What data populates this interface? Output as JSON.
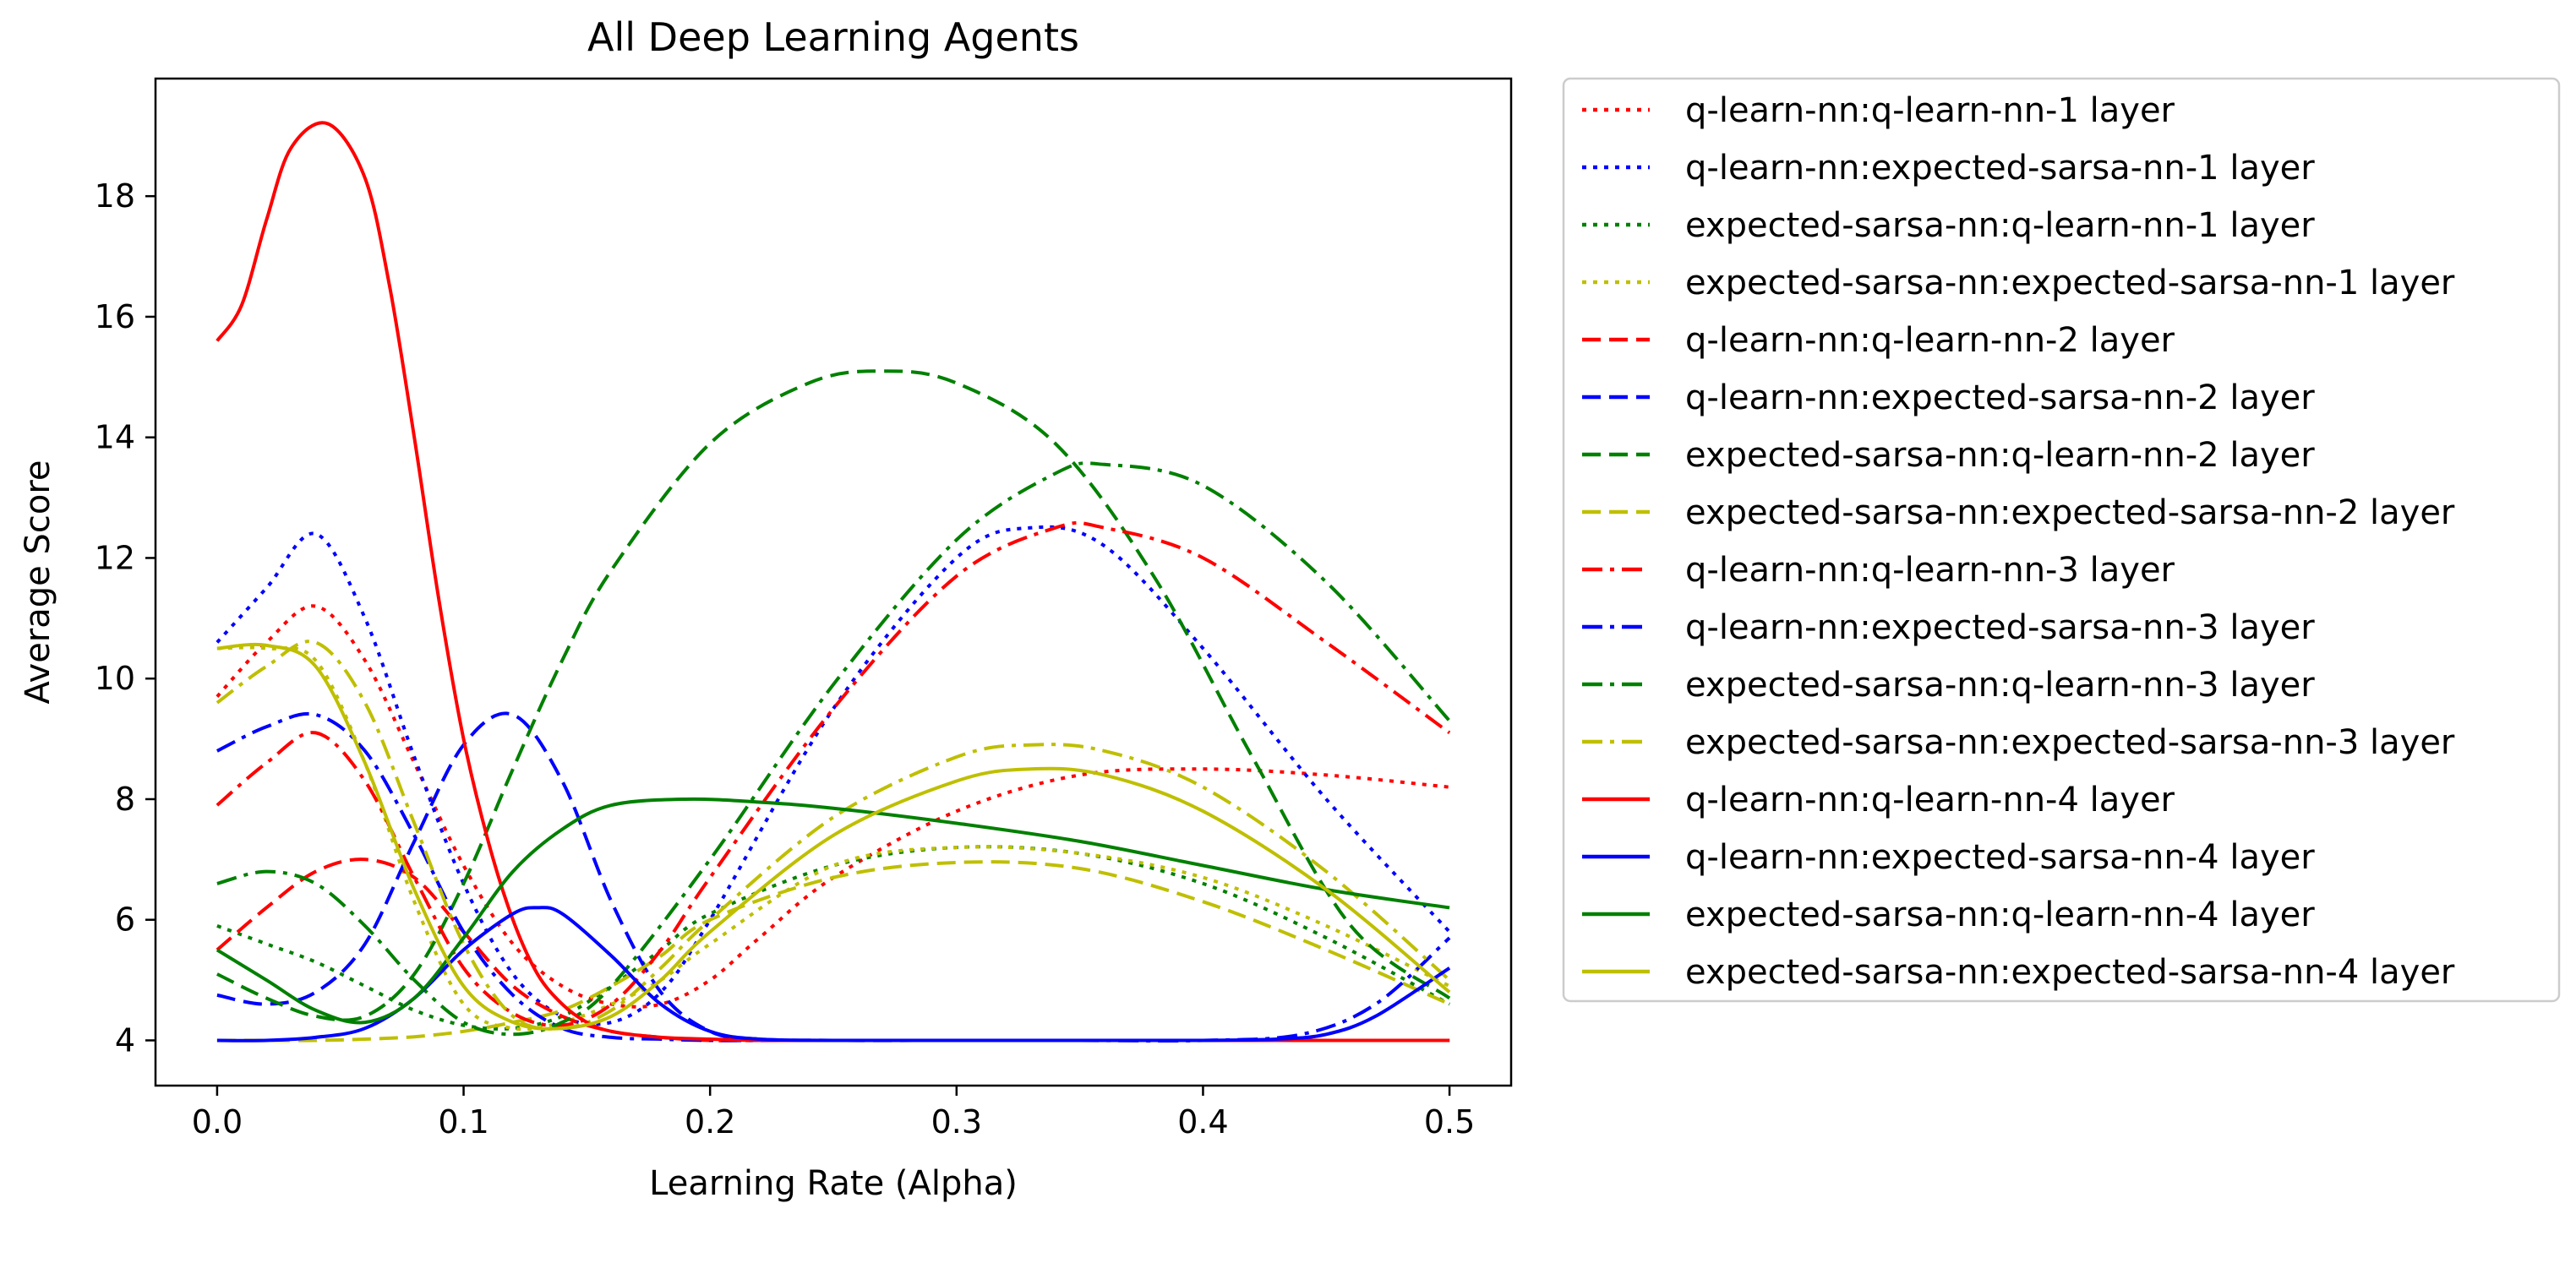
{
  "chart_data": {
    "type": "line",
    "title": "All Deep Learning Agents",
    "xlabel": "Learning Rate (Alpha)",
    "ylabel": "Average Score",
    "xlim": [
      -0.025,
      0.525
    ],
    "ylim": [
      3.25,
      19.95
    ],
    "xticks": [
      0.0,
      0.1,
      0.2,
      0.3,
      0.4,
      0.5
    ],
    "xtick_labels": [
      "0.0",
      "0.1",
      "0.2",
      "0.3",
      "0.4",
      "0.5"
    ],
    "yticks": [
      4,
      6,
      8,
      10,
      12,
      14,
      16,
      18
    ],
    "ytick_labels": [
      "4",
      "6",
      "8",
      "10",
      "12",
      "14",
      "16",
      "18"
    ],
    "grid": false,
    "legend_position": "outside-right",
    "series": [
      {
        "name": "q-learn-nn:q-learn-nn-1 layer",
        "color": "#ff0000",
        "style": "dotted",
        "x": [
          0.0,
          0.02,
          0.04,
          0.06,
          0.08,
          0.1,
          0.12,
          0.14,
          0.16,
          0.18,
          0.2,
          0.22,
          0.25,
          0.3,
          0.35,
          0.4,
          0.45,
          0.5
        ],
        "y": [
          9.7,
          10.6,
          11.2,
          10.3,
          8.6,
          6.9,
          5.6,
          4.9,
          4.6,
          4.6,
          5.0,
          5.7,
          6.7,
          7.8,
          8.4,
          8.5,
          8.4,
          8.2
        ]
      },
      {
        "name": "q-learn-nn:expected-sarsa-nn-1 layer",
        "color": "#0000ff",
        "style": "dotted",
        "x": [
          0.0,
          0.02,
          0.04,
          0.06,
          0.08,
          0.1,
          0.12,
          0.14,
          0.16,
          0.18,
          0.2,
          0.25,
          0.3,
          0.33,
          0.36,
          0.4,
          0.45,
          0.5
        ],
        "y": [
          10.6,
          11.5,
          12.4,
          11.0,
          8.7,
          6.6,
          5.1,
          4.4,
          4.3,
          4.8,
          6.0,
          9.5,
          12.0,
          12.5,
          12.2,
          10.5,
          8.0,
          5.8
        ]
      },
      {
        "name": "expected-sarsa-nn:q-learn-nn-1 layer",
        "color": "#008000",
        "style": "dotted",
        "x": [
          0.0,
          0.02,
          0.04,
          0.06,
          0.08,
          0.1,
          0.12,
          0.14,
          0.16,
          0.18,
          0.2,
          0.25,
          0.3,
          0.35,
          0.4,
          0.45,
          0.5
        ],
        "y": [
          5.9,
          5.6,
          5.3,
          4.9,
          4.5,
          4.25,
          4.2,
          4.4,
          4.9,
          5.5,
          6.1,
          6.9,
          7.2,
          7.1,
          6.6,
          5.7,
          4.6
        ]
      },
      {
        "name": "expected-sarsa-nn:expected-sarsa-nn-1 layer",
        "color": "#bfbf00",
        "style": "dotted",
        "x": [
          0.0,
          0.02,
          0.04,
          0.06,
          0.08,
          0.1,
          0.12,
          0.14,
          0.16,
          0.18,
          0.2,
          0.25,
          0.3,
          0.35,
          0.4,
          0.45,
          0.5
        ],
        "y": [
          10.5,
          10.5,
          10.3,
          8.6,
          6.3,
          4.6,
          4.2,
          4.3,
          4.6,
          5.0,
          5.6,
          6.9,
          7.2,
          7.1,
          6.7,
          5.9,
          4.9
        ]
      },
      {
        "name": "q-learn-nn:q-learn-nn-2 layer",
        "color": "#ff0000",
        "style": "dashed",
        "x": [
          0.0,
          0.02,
          0.04,
          0.06,
          0.08,
          0.1,
          0.12,
          0.14,
          0.16,
          0.18,
          0.2,
          0.22,
          0.25,
          0.3,
          0.35,
          0.4,
          0.45,
          0.5
        ],
        "y": [
          5.5,
          6.2,
          6.8,
          7.0,
          6.7,
          5.8,
          4.9,
          4.4,
          4.15,
          4.05,
          4.0,
          4.0,
          4.0,
          4.0,
          4.0,
          4.0,
          4.0,
          4.0
        ]
      },
      {
        "name": "q-learn-nn:expected-sarsa-nn-2 layer",
        "color": "#0000ff",
        "style": "dashed",
        "x": [
          0.0,
          0.02,
          0.04,
          0.06,
          0.08,
          0.1,
          0.12,
          0.14,
          0.16,
          0.18,
          0.2,
          0.22,
          0.25,
          0.3,
          0.35,
          0.4,
          0.45,
          0.5
        ],
        "y": [
          4.75,
          4.6,
          4.8,
          5.6,
          7.3,
          8.9,
          9.4,
          8.3,
          6.3,
          4.8,
          4.15,
          4.02,
          4.0,
          4.0,
          4.0,
          4.0,
          4.0,
          4.0
        ]
      },
      {
        "name": "expected-sarsa-nn:q-learn-nn-2 layer",
        "color": "#008000",
        "style": "dashed",
        "x": [
          0.0,
          0.02,
          0.04,
          0.06,
          0.08,
          0.1,
          0.12,
          0.14,
          0.16,
          0.2,
          0.24,
          0.27,
          0.3,
          0.34,
          0.38,
          0.42,
          0.46,
          0.5
        ],
        "y": [
          5.1,
          4.7,
          4.4,
          4.4,
          5.1,
          6.6,
          8.5,
          10.3,
          11.8,
          13.9,
          14.9,
          15.1,
          14.9,
          13.9,
          11.7,
          8.7,
          5.9,
          4.7
        ]
      },
      {
        "name": "expected-sarsa-nn:expected-sarsa-nn-2 layer",
        "color": "#bfbf00",
        "style": "dashed",
        "x": [
          0.0,
          0.02,
          0.04,
          0.06,
          0.08,
          0.1,
          0.12,
          0.14,
          0.16,
          0.18,
          0.2,
          0.25,
          0.3,
          0.35,
          0.4,
          0.45,
          0.5
        ],
        "y": [
          4.0,
          4.0,
          4.0,
          4.02,
          4.06,
          4.15,
          4.3,
          4.5,
          4.9,
          5.4,
          6.0,
          6.7,
          6.95,
          6.85,
          6.3,
          5.5,
          4.6
        ]
      },
      {
        "name": "q-learn-nn:q-learn-nn-3 layer",
        "color": "#ff0000",
        "style": "dashdot",
        "x": [
          0.0,
          0.02,
          0.04,
          0.06,
          0.08,
          0.1,
          0.12,
          0.14,
          0.16,
          0.18,
          0.2,
          0.25,
          0.3,
          0.34,
          0.36,
          0.4,
          0.45,
          0.5
        ],
        "y": [
          7.9,
          8.6,
          9.1,
          8.3,
          6.7,
          5.2,
          4.45,
          4.25,
          4.6,
          5.5,
          6.7,
          9.5,
          11.7,
          12.5,
          12.5,
          12.0,
          10.6,
          9.1
        ]
      },
      {
        "name": "q-learn-nn:expected-sarsa-nn-3 layer",
        "color": "#0000ff",
        "style": "dashdot",
        "x": [
          0.0,
          0.02,
          0.04,
          0.06,
          0.08,
          0.1,
          0.12,
          0.14,
          0.16,
          0.18,
          0.2,
          0.25,
          0.3,
          0.35,
          0.4,
          0.44,
          0.47,
          0.5
        ],
        "y": [
          8.8,
          9.2,
          9.4,
          8.8,
          7.4,
          5.8,
          4.75,
          4.2,
          4.05,
          4.02,
          4.0,
          4.0,
          4.0,
          4.0,
          4.0,
          4.1,
          4.6,
          5.7
        ]
      },
      {
        "name": "expected-sarsa-nn:q-learn-nn-3 layer",
        "color": "#008000",
        "style": "dashdot",
        "x": [
          0.0,
          0.02,
          0.04,
          0.06,
          0.08,
          0.1,
          0.12,
          0.14,
          0.16,
          0.2,
          0.25,
          0.3,
          0.34,
          0.36,
          0.4,
          0.45,
          0.5
        ],
        "y": [
          6.6,
          6.8,
          6.6,
          5.9,
          5.0,
          4.3,
          4.1,
          4.3,
          4.9,
          7.0,
          9.9,
          12.3,
          13.4,
          13.55,
          13.2,
          11.6,
          9.3
        ]
      },
      {
        "name": "expected-sarsa-nn:expected-sarsa-nn-3 layer",
        "color": "#bfbf00",
        "style": "dashdot",
        "x": [
          0.0,
          0.02,
          0.04,
          0.06,
          0.08,
          0.1,
          0.12,
          0.14,
          0.16,
          0.18,
          0.2,
          0.25,
          0.3,
          0.33,
          0.36,
          0.4,
          0.45,
          0.5
        ],
        "y": [
          9.6,
          10.2,
          10.6,
          9.6,
          7.6,
          5.6,
          4.4,
          4.2,
          4.5,
          5.2,
          6.0,
          7.7,
          8.7,
          8.9,
          8.8,
          8.2,
          6.8,
          5.0
        ]
      },
      {
        "name": "q-learn-nn:q-learn-nn-4 layer",
        "color": "#ff0000",
        "style": "solid",
        "x": [
          0.0,
          0.01,
          0.02,
          0.03,
          0.045,
          0.06,
          0.07,
          0.08,
          0.09,
          0.1,
          0.11,
          0.12,
          0.13,
          0.14,
          0.15,
          0.16,
          0.18,
          0.2,
          0.22,
          0.25,
          0.3,
          0.4,
          0.5
        ],
        "y": [
          15.6,
          16.2,
          17.6,
          18.8,
          19.2,
          18.3,
          16.5,
          14.0,
          11.3,
          9.0,
          7.3,
          6.0,
          5.1,
          4.6,
          4.3,
          4.15,
          4.05,
          4.02,
          4.0,
          4.0,
          4.0,
          4.0,
          4.0
        ]
      },
      {
        "name": "q-learn-nn:expected-sarsa-nn-4 layer",
        "color": "#0000ff",
        "style": "solid",
        "x": [
          0.0,
          0.02,
          0.04,
          0.06,
          0.08,
          0.1,
          0.12,
          0.13,
          0.14,
          0.16,
          0.18,
          0.2,
          0.22,
          0.25,
          0.3,
          0.35,
          0.4,
          0.43,
          0.45,
          0.47,
          0.5
        ],
        "y": [
          4.0,
          4.0,
          4.05,
          4.2,
          4.7,
          5.5,
          6.1,
          6.2,
          6.1,
          5.4,
          4.6,
          4.15,
          4.02,
          4.0,
          4.0,
          4.0,
          4.0,
          4.02,
          4.1,
          4.4,
          5.2
        ]
      },
      {
        "name": "expected-sarsa-nn:q-learn-nn-4 layer",
        "color": "#008000",
        "style": "solid",
        "x": [
          0.0,
          0.02,
          0.04,
          0.06,
          0.08,
          0.1,
          0.12,
          0.14,
          0.16,
          0.19,
          0.22,
          0.25,
          0.3,
          0.35,
          0.4,
          0.45,
          0.5
        ],
        "y": [
          5.5,
          5.0,
          4.5,
          4.3,
          4.7,
          5.7,
          6.8,
          7.5,
          7.9,
          8.0,
          7.95,
          7.85,
          7.6,
          7.3,
          6.9,
          6.5,
          6.2
        ]
      },
      {
        "name": "expected-sarsa-nn:expected-sarsa-nn-4 layer",
        "color": "#bfbf00",
        "style": "solid",
        "x": [
          0.0,
          0.02,
          0.04,
          0.06,
          0.08,
          0.1,
          0.12,
          0.14,
          0.16,
          0.18,
          0.2,
          0.25,
          0.3,
          0.33,
          0.36,
          0.4,
          0.45,
          0.5
        ],
        "y": [
          10.5,
          10.55,
          10.2,
          8.6,
          6.5,
          4.9,
          4.3,
          4.2,
          4.4,
          5.0,
          5.8,
          7.4,
          8.3,
          8.5,
          8.4,
          7.8,
          6.5,
          4.8
        ]
      }
    ]
  }
}
